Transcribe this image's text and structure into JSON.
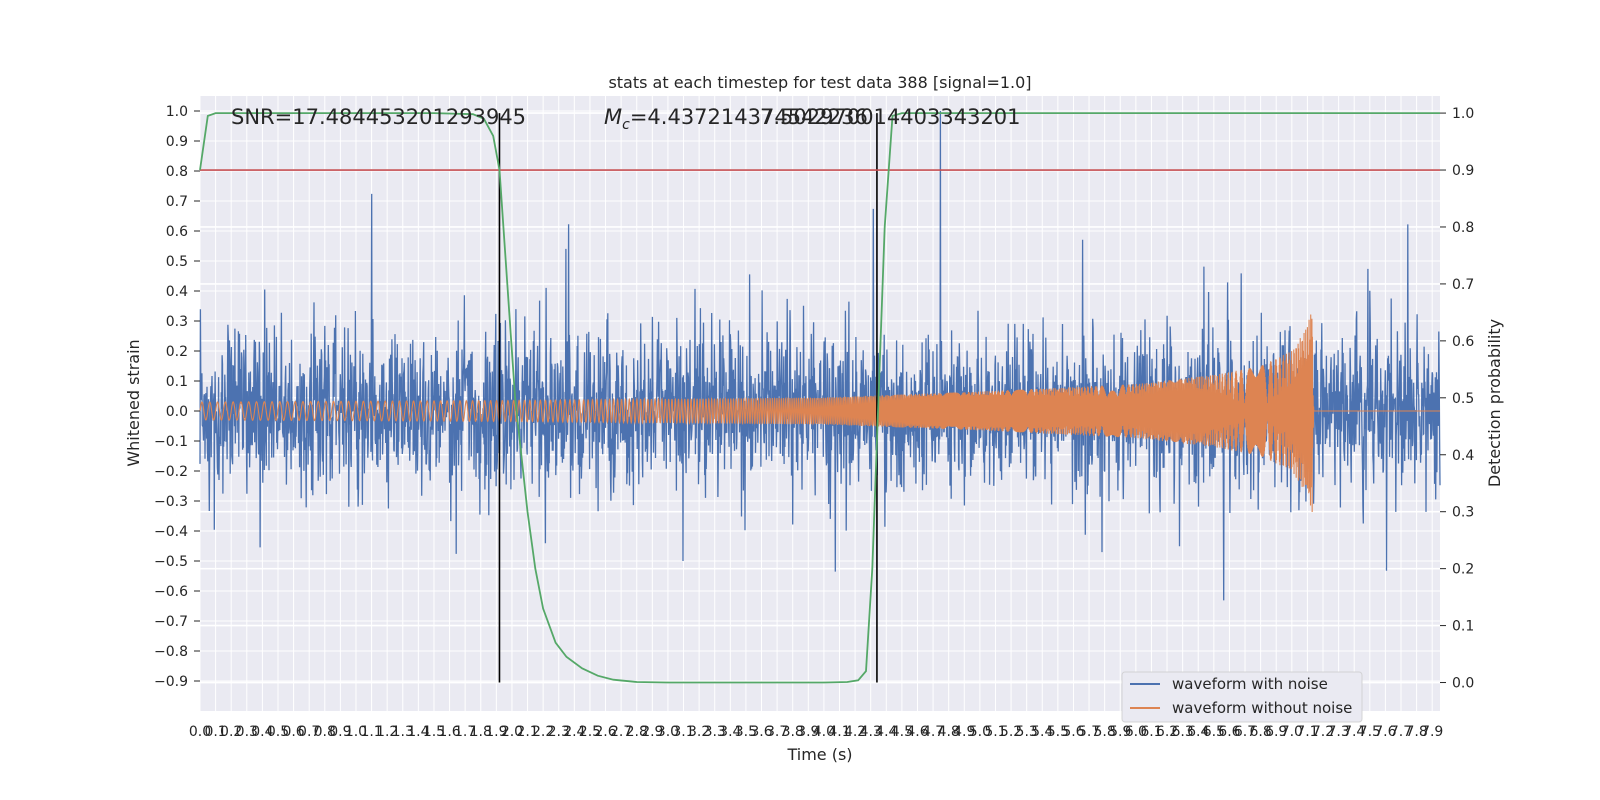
{
  "chart_data": {
    "type": "line",
    "title": "stats at each timestep for test data 388 [signal=1.0]",
    "xlabel": "Time (s)",
    "ylabel": "Whitened strain",
    "y2label": "Detection probability",
    "xlim": [
      0.0,
      7.95
    ],
    "ylim": [
      -1.0,
      1.05
    ],
    "y2lim": [
      -0.05,
      1.03
    ],
    "x_ticks": [
      "0.0",
      "0.1",
      "0.2",
      "0.3",
      "0.4",
      "0.5",
      "0.6",
      "0.7",
      "0.8",
      "0.9",
      "1.0",
      "1.1",
      "1.2",
      "1.3",
      "1.4",
      "1.5",
      "1.6",
      "1.7",
      "1.8",
      "1.9",
      "2.0",
      "2.1",
      "2.2",
      "2.3",
      "2.4",
      "2.5",
      "2.6",
      "2.7",
      "2.8",
      "2.9",
      "3.0",
      "3.1",
      "3.2",
      "3.3",
      "3.4",
      "3.5",
      "3.6",
      "3.7",
      "3.8",
      "3.9",
      "4.0",
      "4.1",
      "4.2",
      "4.3",
      "4.4",
      "4.5",
      "4.6",
      "4.7",
      "4.8",
      "4.9",
      "5.0",
      "5.1",
      "5.2",
      "5.3",
      "5.4",
      "5.5",
      "5.6",
      "5.7",
      "5.8",
      "5.9",
      "6.0",
      "6.1",
      "6.2",
      "6.3",
      "6.4",
      "6.5",
      "6.6",
      "6.7",
      "6.8",
      "6.9",
      "7.0",
      "7.1",
      "7.2",
      "7.3",
      "7.4",
      "7.5",
      "7.6",
      "7.7",
      "7.8",
      "7.9"
    ],
    "y_ticks": [
      "−0.9",
      "−0.8",
      "−0.7",
      "−0.6",
      "−0.5",
      "−0.4",
      "−0.3",
      "−0.2",
      "−0.1",
      "0.0",
      "0.1",
      "0.2",
      "0.3",
      "0.4",
      "0.5",
      "0.6",
      "0.7",
      "0.8",
      "0.9",
      "1.0"
    ],
    "y2_ticks": [
      "0.0",
      "0.1",
      "0.2",
      "0.3",
      "0.4",
      "0.5",
      "0.6",
      "0.7",
      "0.8",
      "0.9",
      "1.0"
    ],
    "annotations": {
      "snr": "SNR=17.484453201293945",
      "mc_symbol": "M",
      "mc_sub": "c",
      "mc_value": "=4.437214374542236",
      "overlap_value": "7.502970014403343201"
    },
    "vertical_lines_x": [
      1.92,
      4.34
    ],
    "threshold_y2": 0.9,
    "series": [
      {
        "name": "waveform with noise",
        "color": "#4c72b0",
        "description_values": {
          "std": 0.13,
          "x_start": 0.0,
          "x_end": 7.95
        }
      },
      {
        "name": "waveform without noise",
        "color": "#dd8452",
        "envelope": {
          "x": [
            0.0,
            2.0,
            4.0,
            5.0,
            6.0,
            6.5,
            6.8,
            7.0,
            7.1,
            7.13,
            7.14,
            7.95
          ],
          "amp": [
            0.03,
            0.035,
            0.045,
            0.065,
            0.09,
            0.12,
            0.15,
            0.2,
            0.28,
            0.35,
            0.0,
            0.0
          ]
        }
      },
      {
        "name": "detection probability",
        "color": "#55a868",
        "x": [
          0.0,
          0.05,
          0.1,
          0.3,
          1.0,
          1.5,
          1.75,
          1.82,
          1.88,
          1.92,
          1.97,
          2.02,
          2.1,
          2.15,
          2.2,
          2.28,
          2.35,
          2.45,
          2.55,
          2.65,
          2.8,
          3.0,
          3.5,
          4.0,
          4.15,
          4.22,
          4.27,
          4.31,
          4.35,
          4.39,
          4.44,
          4.5,
          5.0,
          6.0,
          7.0,
          7.95
        ],
        "values": [
          0.9,
          0.995,
          1.0,
          1.0,
          1.0,
          1.0,
          0.998,
          0.99,
          0.96,
          0.9,
          0.7,
          0.5,
          0.3,
          0.2,
          0.13,
          0.07,
          0.045,
          0.025,
          0.012,
          0.005,
          0.001,
          0.0,
          0.0,
          0.0,
          0.001,
          0.004,
          0.02,
          0.2,
          0.5,
          0.8,
          0.995,
          1.0,
          1.0,
          1.0,
          1.0,
          1.0
        ]
      }
    ],
    "colors": {
      "threshold": "#c44e52",
      "vlines": "#000000",
      "axes_bg": "#eaeaf2",
      "grid": "#ffffff"
    },
    "legend": {
      "placement": "lower-right",
      "entries": [
        "waveform with noise",
        "waveform without noise"
      ]
    }
  }
}
